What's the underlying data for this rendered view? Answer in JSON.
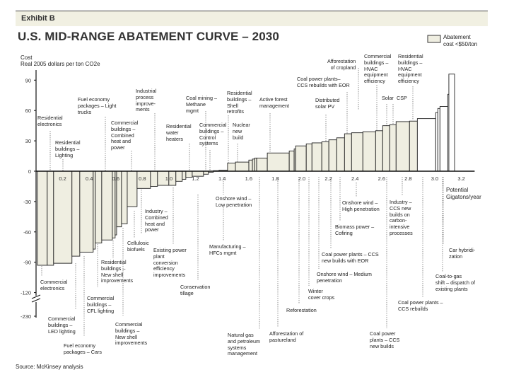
{
  "header": {
    "exhibit": "Exhibit B",
    "title": "U.S. MID-RANGE ABATEMENT CURVE – 2030"
  },
  "legend": {
    "label": "Abatement\ncost <$50/ton",
    "fill": "#efeee1"
  },
  "source": "Source: McKinsey analysis",
  "chart_data": {
    "type": "bar",
    "title": "U.S. MID-RANGE ABATEMENT CURVE – 2030",
    "ylabel": "Cost",
    "ylabel_sub": "Real 2005 dollars per ton CO2e",
    "xlabel": "Potential\nGigatons/year",
    "xlim": [
      0,
      3.2
    ],
    "ylim": [
      -230,
      100
    ],
    "y_axis_break": [
      -120,
      -230
    ],
    "yticks": [
      "90",
      "60",
      "30",
      "0",
      "-30",
      "-60",
      "-90",
      "-120",
      "-230"
    ],
    "ytick_values": [
      90,
      60,
      30,
      0,
      -30,
      -60,
      -90,
      -120,
      -230
    ],
    "xticks": [
      "0",
      "0.2",
      "0.4",
      "0.6",
      "0.8",
      "1.0",
      "1.2",
      "1.4",
      "1.6",
      "1.8",
      "2.0",
      "2.2",
      "2.4",
      "2.6",
      "2.8",
      "3.0",
      "3.2"
    ],
    "threshold_cost": 50,
    "colors": {
      "below_threshold": "#efeee1",
      "above_threshold": "#ffffff",
      "outline": "#222222"
    },
    "bars": [
      {
        "width": 0.074,
        "cost": -93
      },
      {
        "width": 0.048,
        "cost": -93
      },
      {
        "width": 0.138,
        "cost": -91
      },
      {
        "width": 0.059,
        "cost": -84
      },
      {
        "width": 0.101,
        "cost": -80
      },
      {
        "width": 0.016,
        "cost": -77
      },
      {
        "width": 0.048,
        "cost": -71
      },
      {
        "width": 0.08,
        "cost": -68
      },
      {
        "width": 0.021,
        "cost": -66
      },
      {
        "width": 0.011,
        "cost": -63
      },
      {
        "width": 0.037,
        "cost": -55
      },
      {
        "width": 0.043,
        "cost": -52
      },
      {
        "width": 0.074,
        "cost": -35
      },
      {
        "width": 0.101,
        "cost": -17
      },
      {
        "width": 0.053,
        "cost": -15
      },
      {
        "width": 0.085,
        "cost": -14
      },
      {
        "width": 0.053,
        "cost": -14
      },
      {
        "width": 0.048,
        "cost": -10
      },
      {
        "width": 0.027,
        "cost": -8
      },
      {
        "width": 0.048,
        "cost": -6
      },
      {
        "width": 0.085,
        "cost": -5
      },
      {
        "width": 0.037,
        "cost": -3
      },
      {
        "width": 0.037,
        "cost": -1
      },
      {
        "width": 0.043,
        "cost": 0.5
      },
      {
        "width": 0.064,
        "cost": 1
      },
      {
        "width": 0.059,
        "cost": 8
      },
      {
        "width": 0.101,
        "cost": 9
      },
      {
        "width": 0.027,
        "cost": 11
      },
      {
        "width": 0.016,
        "cost": 12
      },
      {
        "width": 0.016,
        "cost": 13
      },
      {
        "width": 0.08,
        "cost": 13
      },
      {
        "width": 0.165,
        "cost": 18
      },
      {
        "width": 0.037,
        "cost": 20
      },
      {
        "width": 0.011,
        "cost": 22
      },
      {
        "width": 0.08,
        "cost": 25
      },
      {
        "width": 0.043,
        "cost": 27
      },
      {
        "width": 0.074,
        "cost": 28
      },
      {
        "width": 0.053,
        "cost": 29
      },
      {
        "width": 0.059,
        "cost": 31
      },
      {
        "width": 0.059,
        "cost": 33
      },
      {
        "width": 0.053,
        "cost": 37
      },
      {
        "width": 0.085,
        "cost": 38
      },
      {
        "width": 0.096,
        "cost": 39
      },
      {
        "width": 0.053,
        "cost": 40
      },
      {
        "width": 0.053,
        "cost": 45
      },
      {
        "width": 0.048,
        "cost": 46
      },
      {
        "width": 0.101,
        "cost": 49
      },
      {
        "width": 0.059,
        "cost": 49.5
      },
      {
        "width": 0.138,
        "cost": 52
      },
      {
        "width": 0.016,
        "cost": 58
      },
      {
        "width": 0.016,
        "cost": 62
      },
      {
        "width": 0.059,
        "cost": 64
      },
      {
        "width": 0.008,
        "cost": 76
      },
      {
        "width": 0.043,
        "cost": 96
      }
    ],
    "annotations": [
      "Residential\nelectronics",
      "Residential\nbuildings –\nLighting",
      "Fuel economy\npackages – Light\ntrucks",
      "Industrial\nprocess\nimprove-\nments",
      "Commercial\nbuildings –\nCombined\nheat and\npower",
      "Coal mining –\nMethane\nmgmt",
      "Residential\nwater\nheaters",
      "Commercial\nbuildings –\nControl\nsystems",
      "Residential\nbuildings –\nShell\nretrofits",
      "Nuclear\nnew\nbuild",
      "Active forest\nmanagement",
      "Coal power plants–\nCCS rebuilds with EOR",
      "Distributed\nsolar PV",
      "Afforestation\nof cropland",
      "Commercial\nbuildings –\nHVAC\nequipment\nefficiency",
      "Residential\nbuildings –\nHVAC\nequipment\nefficiency",
      "Solar",
      "CSP",
      "Commercial\nelectronics",
      "Commercial\nbuildings –\nLED lighting",
      "Fuel economy\npackages – Cars",
      "Commercial\nbuildings –\nCFL lighting",
      "Residential\nbuildings –\nNew shell\nimprovements",
      "Commercial\nbuildings –\nNew shell\nimprovements",
      "Cellulosic\nbiofuels",
      "Industry –\nCombined\nheat and\npower",
      "Existing power\nplant\nconversion\nefficiency\nimprovements",
      "Conservation\ntillage",
      "Onshore wind –\nLow penetration",
      "Manufacturing –\nHFCs mgmt",
      "Natural gas\nand petroleum\nsystems\nmanagement",
      "Afforestation of\npastureland",
      "Reforestation",
      "Winter\ncover crops",
      "Onshore wind – Medium\npenetration",
      "Coal power plants – CCS\nnew builds with EOR",
      "Biomass power –\nCofiring",
      "Onshore wind –\nHigh penetration",
      "Industry –\nCCS new\nbuilds on\ncarbon-\nintensive\nprocesses",
      "Coal power\nplants – CCS\nnew builds",
      "Coal power plants –\nCCS rebuilds",
      "Coal-to-gas\nshift – dispatch of\nexisting plants",
      "Car hybridi-\nzation"
    ]
  }
}
